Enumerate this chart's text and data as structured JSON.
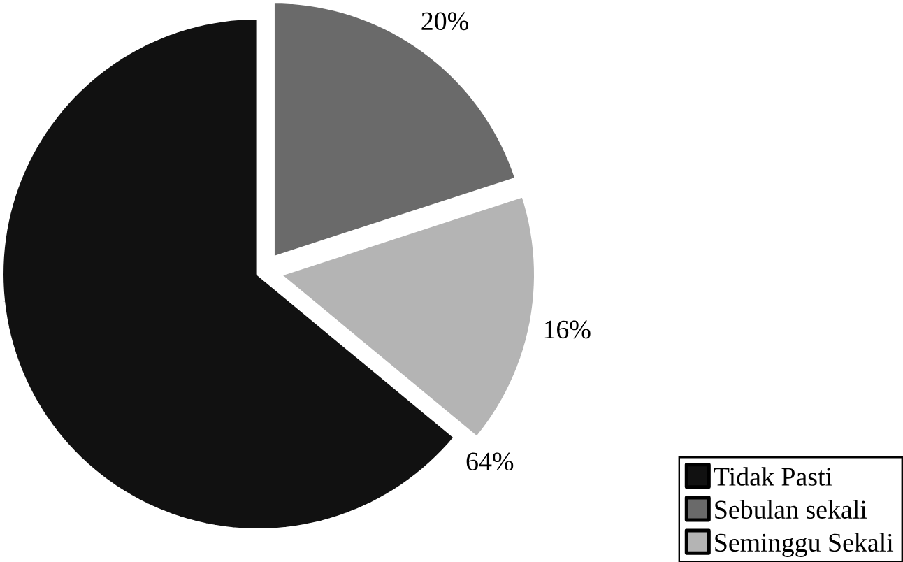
{
  "chart_data": {
    "type": "pie",
    "categories": [
      "Tidak Pasti",
      "Sebulan sekali",
      "Seminggu Sekali"
    ],
    "values": [
      64,
      20,
      16
    ],
    "colors": [
      "#111111",
      "#6a6a6a",
      "#b4b4b4"
    ],
    "value_labels": [
      "64%",
      "20%",
      "16%"
    ],
    "legend": "bottom right"
  }
}
